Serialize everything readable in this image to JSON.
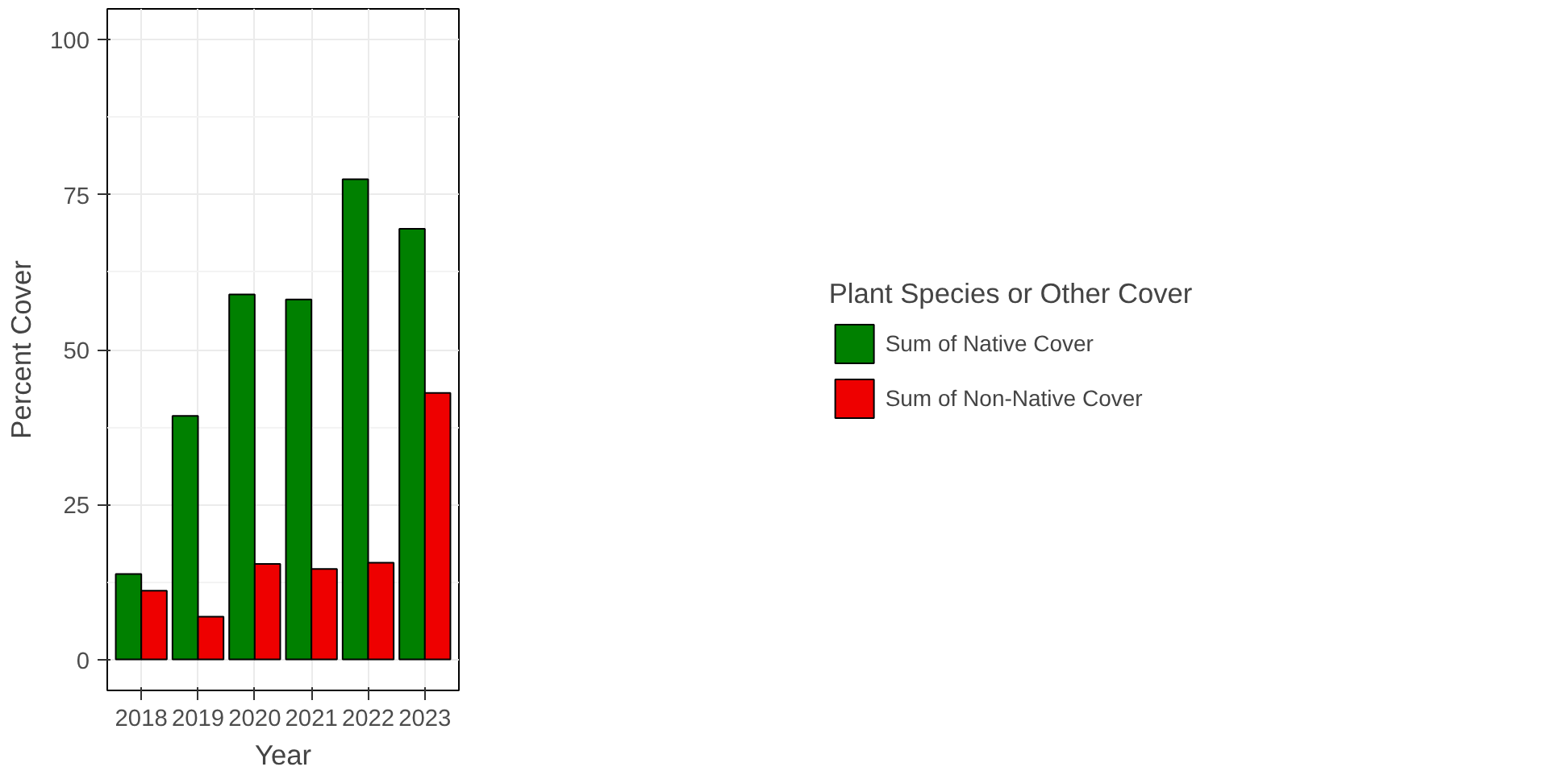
{
  "chart_data": {
    "type": "bar",
    "xlabel": "Year",
    "ylabel": "Percent Cover",
    "legend_title": "Plant Species or Other Cover",
    "categories": [
      "2018",
      "2019",
      "2020",
      "2021",
      "2022",
      "2023"
    ],
    "series": [
      {
        "name": "Sum of Native Cover",
        "color": "#008000",
        "values": [
          13.8,
          39.3,
          58.9,
          58.1,
          77.5,
          69.5
        ]
      },
      {
        "name": "Sum of Non-Native Cover",
        "color": "#ee0000",
        "values": [
          11.1,
          6.9,
          15.4,
          14.6,
          15.6,
          43.0
        ]
      }
    ],
    "ylim": [
      -5,
      105
    ],
    "yticks": [
      0,
      25,
      50,
      75,
      100
    ],
    "grid": true,
    "legend": "right"
  }
}
